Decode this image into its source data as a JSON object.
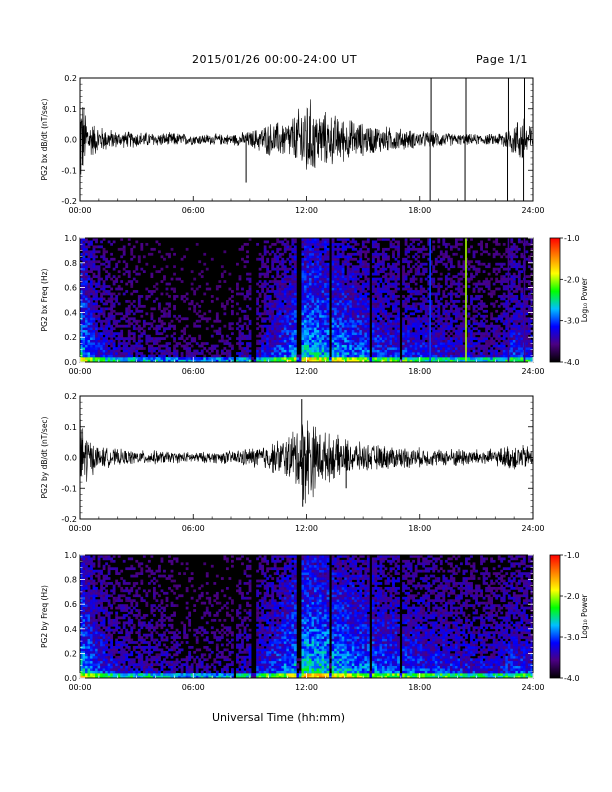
{
  "header": {
    "title": "2015/01/26  00:00-24:00 UT",
    "page": "Page 1/1"
  },
  "x_axis_title": "Universal Time (hh:mm)",
  "colorbar": {
    "label": "Log₁₀ Power",
    "ticks": [
      "-1.0",
      "-2.0",
      "-3.0",
      "-4.0"
    ],
    "range": [
      -4.0,
      -1.0
    ],
    "stops": [
      "#000000",
      "#4b0082",
      "#0000ff",
      "#00bfff",
      "#00ff00",
      "#ffff00",
      "#ff8000",
      "#ff0000"
    ]
  },
  "chart_data": [
    {
      "type": "line",
      "id": "bx-ts",
      "ylabel": "PG2 bx dB/dt (nT/sec)",
      "xlim": [
        "00:00",
        "24:00"
      ],
      "ylim": [
        -0.2,
        0.2
      ],
      "xticks": [
        "00:00",
        "06:00",
        "12:00",
        "18:00",
        "24:00"
      ],
      "yticks": [
        "-0.2",
        "-0.1",
        "0.0",
        "0.1",
        "0.2"
      ],
      "envelope": {
        "hours": [
          0,
          0.25,
          0.5,
          1,
          2,
          3,
          4,
          5,
          6,
          7,
          8,
          9,
          10,
          11,
          11.5,
          12,
          12.5,
          13,
          14,
          15,
          16,
          17,
          18,
          19,
          20,
          21,
          22,
          23,
          23.5,
          24
        ],
        "amplitude": [
          0.2,
          0.12,
          0.07,
          0.05,
          0.03,
          0.03,
          0.025,
          0.025,
          0.02,
          0.02,
          0.02,
          0.03,
          0.06,
          0.07,
          0.1,
          0.17,
          0.11,
          0.1,
          0.08,
          0.06,
          0.05,
          0.04,
          0.03,
          0.03,
          0.02,
          0.02,
          0.02,
          0.06,
          0.1,
          0.05
        ]
      },
      "spikes": [
        {
          "hour": 8.8,
          "value": -0.14
        },
        {
          "hour": 18.55,
          "value": -0.2
        },
        {
          "hour": 18.6,
          "value": 0.2
        },
        {
          "hour": 20.4,
          "value": -0.2
        },
        {
          "hour": 20.45,
          "value": 0.2
        },
        {
          "hour": 22.65,
          "value": -0.2
        },
        {
          "hour": 22.7,
          "value": 0.2
        },
        {
          "hour": 23.5,
          "value": -0.2
        },
        {
          "hour": 23.55,
          "value": 0.2
        }
      ]
    },
    {
      "type": "heatmap",
      "id": "bx-spec",
      "ylabel": "PG2 bx Freq (Hz)",
      "xlim": [
        "00:00",
        "24:00"
      ],
      "ylim": [
        0.0,
        1.0
      ],
      "xticks": [
        "00:00",
        "06:00",
        "12:00",
        "18:00",
        "24:00"
      ],
      "yticks": [
        "0.0",
        "0.2",
        "0.4",
        "0.6",
        "0.8",
        "1.0"
      ],
      "activity": {
        "hours": [
          0,
          1,
          2,
          4,
          6,
          8,
          10,
          11,
          12,
          13,
          14,
          16,
          18,
          20,
          22,
          23,
          24
        ],
        "level": [
          0.8,
          0.55,
          0.45,
          0.4,
          0.35,
          0.35,
          0.55,
          0.65,
          0.8,
          0.75,
          0.7,
          0.6,
          0.55,
          0.5,
          0.45,
          0.6,
          0.5
        ]
      },
      "vertical_lines": [
        {
          "hour": 18.55,
          "log_power": -3.0
        },
        {
          "hour": 20.45,
          "log_power": -2.0
        },
        {
          "hour": 22.7,
          "log_power": -3.5
        },
        {
          "hour": 23.55,
          "log_power": -3.5
        }
      ],
      "dark_gaps": [
        8.2,
        9.2,
        11.6,
        13.3,
        15.4,
        17.0
      ]
    },
    {
      "type": "line",
      "id": "by-ts",
      "ylabel": "PG2 by dB/dt (nT/sec)",
      "xlim": [
        "00:00",
        "24:00"
      ],
      "ylim": [
        -0.2,
        0.2
      ],
      "xticks": [
        "00:00",
        "06:00",
        "12:00",
        "18:00",
        "24:00"
      ],
      "yticks": [
        "-0.2",
        "-0.1",
        "0.0",
        "0.1",
        "0.2"
      ],
      "envelope": {
        "hours": [
          0,
          0.25,
          0.5,
          1,
          2,
          3,
          4,
          5,
          6,
          7,
          8,
          9,
          10,
          11,
          11.5,
          12,
          12.5,
          13,
          14,
          15,
          16,
          17,
          18,
          19,
          20,
          21,
          22,
          23,
          24
        ],
        "amplitude": [
          0.18,
          0.12,
          0.07,
          0.04,
          0.03,
          0.025,
          0.025,
          0.02,
          0.02,
          0.02,
          0.025,
          0.035,
          0.05,
          0.08,
          0.12,
          0.18,
          0.12,
          0.09,
          0.07,
          0.05,
          0.045,
          0.04,
          0.035,
          0.03,
          0.035,
          0.03,
          0.03,
          0.05,
          0.04
        ]
      },
      "spikes": [
        {
          "hour": 11.75,
          "value": 0.19
        },
        {
          "hour": 11.8,
          "value": -0.16
        },
        {
          "hour": 14.1,
          "value": -0.1
        }
      ]
    },
    {
      "type": "heatmap",
      "id": "by-spec",
      "ylabel": "PG2 by Freq (Hz)",
      "xlim": [
        "00:00",
        "24:00"
      ],
      "ylim": [
        0.0,
        1.0
      ],
      "xticks": [
        "00:00",
        "06:00",
        "12:00",
        "18:00",
        "24:00"
      ],
      "yticks": [
        "0.0",
        "0.2",
        "0.4",
        "0.6",
        "0.8",
        "1.0"
      ],
      "activity": {
        "hours": [
          0,
          1,
          2,
          4,
          6,
          8,
          10,
          11,
          12,
          13,
          14,
          16,
          18,
          20,
          22,
          23,
          24
        ],
        "level": [
          0.8,
          0.6,
          0.5,
          0.45,
          0.4,
          0.4,
          0.6,
          0.7,
          0.85,
          0.8,
          0.75,
          0.65,
          0.6,
          0.55,
          0.5,
          0.6,
          0.55
        ]
      },
      "vertical_lines": [],
      "dark_gaps": [
        8.2,
        9.2,
        11.6,
        13.3,
        15.4,
        17.0
      ]
    }
  ]
}
